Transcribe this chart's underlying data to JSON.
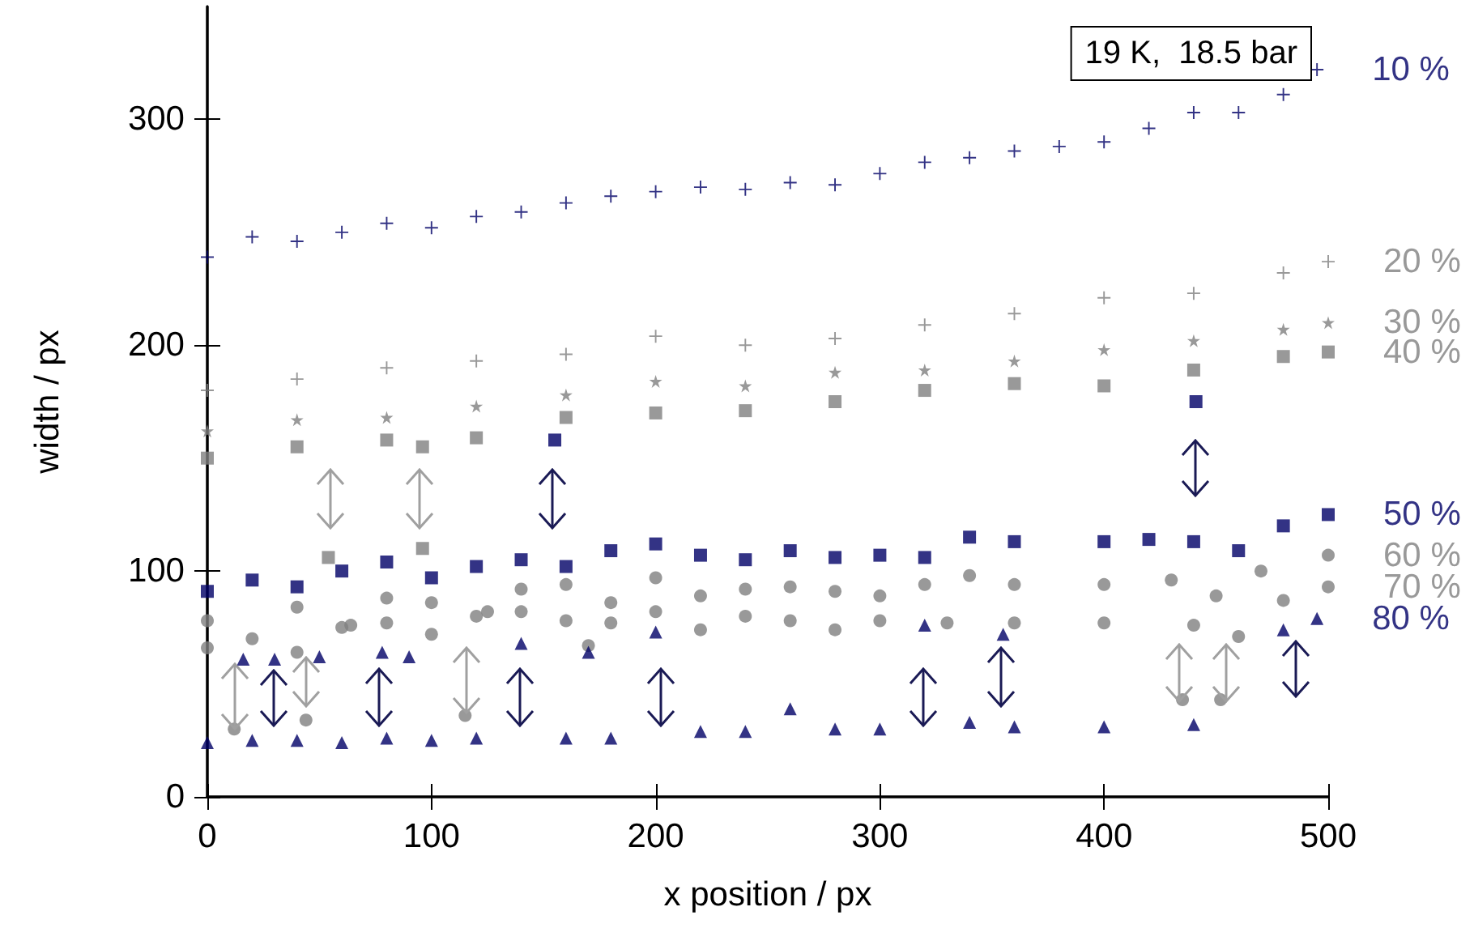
{
  "chart_data": {
    "type": "scatter",
    "xlabel": "x position / px",
    "ylabel": "width / px",
    "xlim": [
      0,
      500
    ],
    "xticks": [
      0,
      100,
      200,
      300,
      400,
      500
    ],
    "ylim": [
      0,
      350
    ],
    "yticks": [
      0,
      100,
      200,
      300
    ],
    "grid": false,
    "legend": false,
    "annotations": [
      "19 K,  18.5 bar"
    ],
    "series": [
      {
        "name": "10 %",
        "color": "#000066",
        "marker": "cross",
        "x": [
          0,
          20,
          40,
          60,
          80,
          100,
          120,
          140,
          160,
          180,
          200,
          220,
          240,
          260,
          280,
          300,
          320,
          340,
          360,
          380,
          400,
          420,
          440,
          460,
          480,
          495
        ],
        "values": [
          239,
          248,
          246,
          250,
          254,
          252,
          257,
          259,
          263,
          266,
          268,
          270,
          269,
          272,
          271,
          276,
          281,
          283,
          286,
          288,
          290,
          296,
          303,
          303,
          311,
          322
        ]
      },
      {
        "name": "20 %",
        "color": "#808080",
        "marker": "cross",
        "x": [
          0,
          40,
          80,
          120,
          160,
          200,
          240,
          280,
          320,
          360,
          400,
          440,
          480,
          500
        ],
        "values": [
          180,
          185,
          190,
          193,
          196,
          204,
          200,
          203,
          209,
          214,
          221,
          223,
          232,
          237
        ]
      },
      {
        "name": "30 %",
        "color": "#808080",
        "marker": "star",
        "x": [
          0,
          40,
          80,
          120,
          160,
          200,
          240,
          280,
          320,
          360,
          400,
          440,
          480,
          500
        ],
        "values": [
          162,
          167,
          168,
          173,
          178,
          184,
          182,
          188,
          189,
          193,
          198,
          202,
          207,
          210
        ]
      },
      {
        "name": "40 %",
        "color": "#808080",
        "marker": "square",
        "x": [
          0,
          40,
          54,
          80,
          96,
          96,
          120,
          160,
          200,
          240,
          280,
          320,
          360,
          400,
          440,
          480,
          500
        ],
        "values": [
          150,
          155,
          106,
          158,
          110,
          155,
          159,
          168,
          170,
          171,
          175,
          180,
          183,
          182,
          189,
          195,
          197
        ]
      },
      {
        "name": "50 %",
        "color": "#000066",
        "marker": "square",
        "x": [
          0,
          20,
          40,
          60,
          80,
          100,
          120,
          140,
          155,
          160,
          180,
          200,
          220,
          240,
          260,
          280,
          300,
          320,
          340,
          360,
          400,
          420,
          441,
          440,
          460,
          480,
          500
        ],
        "values": [
          91,
          96,
          93,
          100,
          104,
          97,
          102,
          105,
          158,
          102,
          109,
          112,
          107,
          105,
          109,
          106,
          107,
          106,
          115,
          113,
          113,
          114,
          175,
          113,
          109,
          120,
          125
        ]
      },
      {
        "name": "60 %",
        "color": "#808080",
        "marker": "circle",
        "x": [
          0,
          40,
          64,
          80,
          100,
          125,
          140,
          160,
          180,
          200,
          220,
          240,
          260,
          280,
          300,
          320,
          340,
          360,
          400,
          430,
          450,
          470,
          500
        ],
        "values": [
          78,
          84,
          76,
          88,
          86,
          82,
          92,
          94,
          86,
          97,
          89,
          92,
          93,
          91,
          89,
          94,
          98,
          94,
          94,
          96,
          89,
          100,
          107
        ]
      },
      {
        "name": "70 %",
        "color": "#808080",
        "marker": "circle",
        "x": [
          0,
          12,
          20,
          40,
          44,
          60,
          80,
          100,
          115,
          120,
          140,
          160,
          170,
          180,
          200,
          220,
          240,
          260,
          280,
          300,
          330,
          360,
          400,
          435,
          440,
          452,
          460,
          480,
          500
        ],
        "values": [
          66,
          30,
          70,
          64,
          34,
          75,
          77,
          72,
          36,
          80,
          82,
          78,
          67,
          77,
          82,
          74,
          80,
          78,
          74,
          78,
          77,
          77,
          77,
          43,
          76,
          43,
          71,
          87,
          93
        ]
      },
      {
        "name": "80 %",
        "color": "#000066",
        "marker": "triangle",
        "x": [
          0,
          16,
          20,
          30,
          40,
          50,
          60,
          78,
          80,
          90,
          100,
          120,
          140,
          160,
          170,
          180,
          200,
          220,
          240,
          260,
          280,
          300,
          320,
          340,
          355,
          360,
          400,
          440,
          480,
          495
        ],
        "values": [
          24,
          61,
          25,
          61,
          25,
          62,
          24,
          64,
          26,
          62,
          25,
          26,
          68,
          26,
          64,
          26,
          73,
          29,
          29,
          39,
          30,
          30,
          76,
          33,
          72,
          31,
          31,
          32,
          74,
          79
        ]
      }
    ]
  }
}
